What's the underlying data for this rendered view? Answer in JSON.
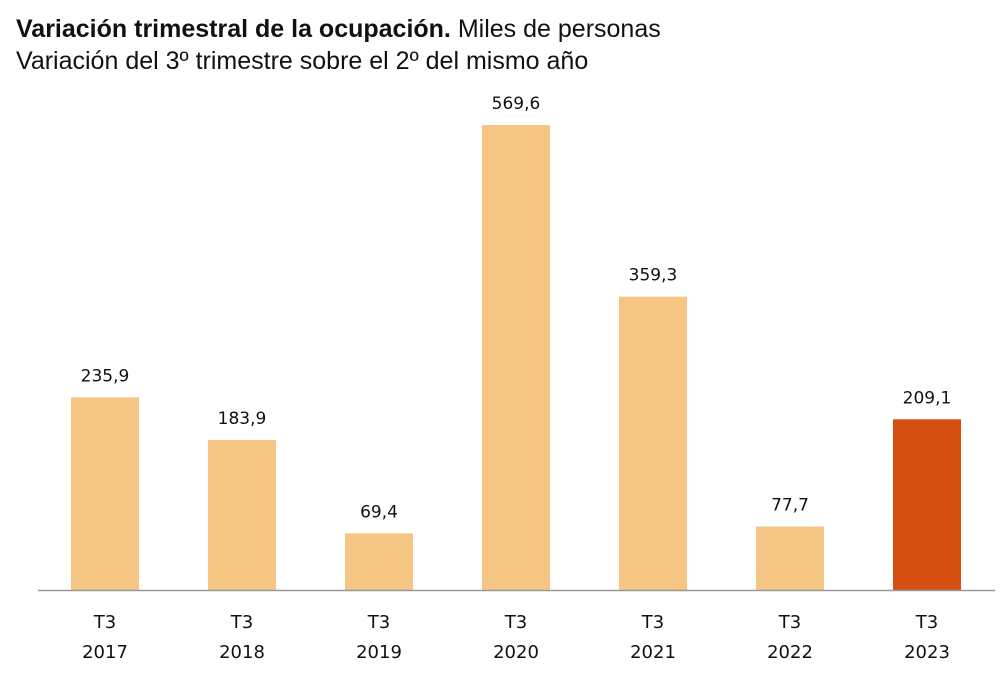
{
  "title_bold": "Variación trimestral de la ocupación.",
  "title_rest": "Miles de personas",
  "subtitle": "Variación del 3º trimestre sobre el 2º del mismo año",
  "colors": {
    "bar": "#F5C583",
    "highlight": "#D44F11",
    "axis": "#999999"
  },
  "chart_data": {
    "type": "bar",
    "title": "Variación trimestral de la ocupación. Miles de personas",
    "subtitle": "Variación del 3º trimestre sobre el 2º del mismo año",
    "categories": [
      {
        "quarter": "T3",
        "year": "2017"
      },
      {
        "quarter": "T3",
        "year": "2018"
      },
      {
        "quarter": "T3",
        "year": "2019"
      },
      {
        "quarter": "T3",
        "year": "2020"
      },
      {
        "quarter": "T3",
        "year": "2021"
      },
      {
        "quarter": "T3",
        "year": "2022"
      },
      {
        "quarter": "T3",
        "year": "2023"
      }
    ],
    "values": [
      235.9,
      183.9,
      69.4,
      569.6,
      359.3,
      77.7,
      209.1
    ],
    "value_labels": [
      "235,9",
      "183,9",
      "69,4",
      "569,6",
      "359,3",
      "77,7",
      "209,1"
    ],
    "highlight_index": 6,
    "ylim": [
      0,
      569.6
    ],
    "grid": false,
    "legend": "none"
  }
}
